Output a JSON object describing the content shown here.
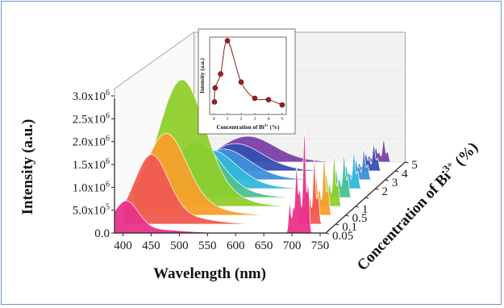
{
  "chart_data": {
    "type": "area",
    "xlabel": "Wavelength (nm)",
    "ylabel": "Intensity (a.u.)",
    "zlabel": "Concentration of Bi",
    "zlabel_sup": "3+",
    "zlabel_tail": " (%)",
    "x_ticks": [
      "400",
      "450",
      "500",
      "550",
      "600",
      "650",
      "700",
      "750"
    ],
    "xlim": [
      385,
      760
    ],
    "y_ticks": [
      {
        "m": "0.0",
        "e": ""
      },
      {
        "m": "5.0x10",
        "e": "5"
      },
      {
        "m": "1.0x10",
        "e": "6"
      },
      {
        "m": "1.5x10",
        "e": "6"
      },
      {
        "m": "2.0x10",
        "e": "6"
      },
      {
        "m": "2.5x10",
        "e": "6"
      },
      {
        "m": "3.0x10",
        "e": "6"
      }
    ],
    "ylim": [
      0,
      3000000
    ],
    "series": [
      {
        "name": "0.05",
        "color": "#e8338a",
        "broad_peak": 405,
        "broad_height": 650000,
        "broad_width": 22,
        "red_scale": 1.0
      },
      {
        "name": "0.1",
        "color": "#f05a50",
        "broad_peak": 432,
        "broad_height": 1400000,
        "broad_width": 30,
        "red_scale": 0.62
      },
      {
        "name": "0.5",
        "color": "#f6a02a",
        "broad_peak": 440,
        "broad_height": 1650000,
        "broad_width": 36,
        "red_scale": 0.58
      },
      {
        "name": "1",
        "color": "#8fcf2c",
        "broad_peak": 450,
        "broad_height": 2550000,
        "broad_width": 40,
        "red_scale": 0.5
      },
      {
        "name": "",
        "color": "#4cc090",
        "broad_peak": 458,
        "broad_height": 1120000,
        "broad_width": 42,
        "red_scale": 0.42
      },
      {
        "name": "2",
        "color": "#33b7dc",
        "broad_peak": 465,
        "broad_height": 780000,
        "broad_width": 44,
        "red_scale": 0.36
      },
      {
        "name": "3",
        "color": "#3d8fd8",
        "broad_peak": 470,
        "broad_height": 620000,
        "broad_width": 45,
        "red_scale": 0.3
      },
      {
        "name": "4",
        "color": "#3550b0",
        "broad_peak": 474,
        "broad_height": 550000,
        "broad_width": 46,
        "red_scale": 0.26
      },
      {
        "name": "5",
        "color": "#7a3fa6",
        "broad_peak": 478,
        "broad_height": 520000,
        "broad_width": 46,
        "red_scale": 0.22
      }
    ],
    "red_lines": [
      {
        "center": 696,
        "width": 2.0,
        "height": 650000
      },
      {
        "center": 702,
        "width": 1.8,
        "height": 500000
      },
      {
        "center": 708,
        "width": 2.2,
        "height": 1450000
      },
      {
        "center": 714,
        "width": 2.0,
        "height": 950000
      },
      {
        "center": 722,
        "width": 2.4,
        "height": 2250000
      },
      {
        "center": 729,
        "width": 2.0,
        "height": 1050000
      }
    ],
    "inset": {
      "xlabel": "Concentration of Bi",
      "xlabel_sup": "3+",
      "xlabel_tail": " (%)",
      "ylabel": "Intensity (a.u.)",
      "x_ticks": [
        "0",
        "1",
        "2",
        "3",
        "4",
        "5"
      ],
      "xlim": [
        -0.3,
        5.3
      ],
      "ylim": [
        0,
        1.05
      ],
      "points": [
        {
          "x": 0.05,
          "y": 0.17
        },
        {
          "x": 0.1,
          "y": 0.36
        },
        {
          "x": 0.5,
          "y": 0.55
        },
        {
          "x": 1,
          "y": 1.0
        },
        {
          "x": 2,
          "y": 0.44
        },
        {
          "x": 3,
          "y": 0.22
        },
        {
          "x": 4,
          "y": 0.2
        },
        {
          "x": 5,
          "y": 0.13
        }
      ]
    }
  }
}
